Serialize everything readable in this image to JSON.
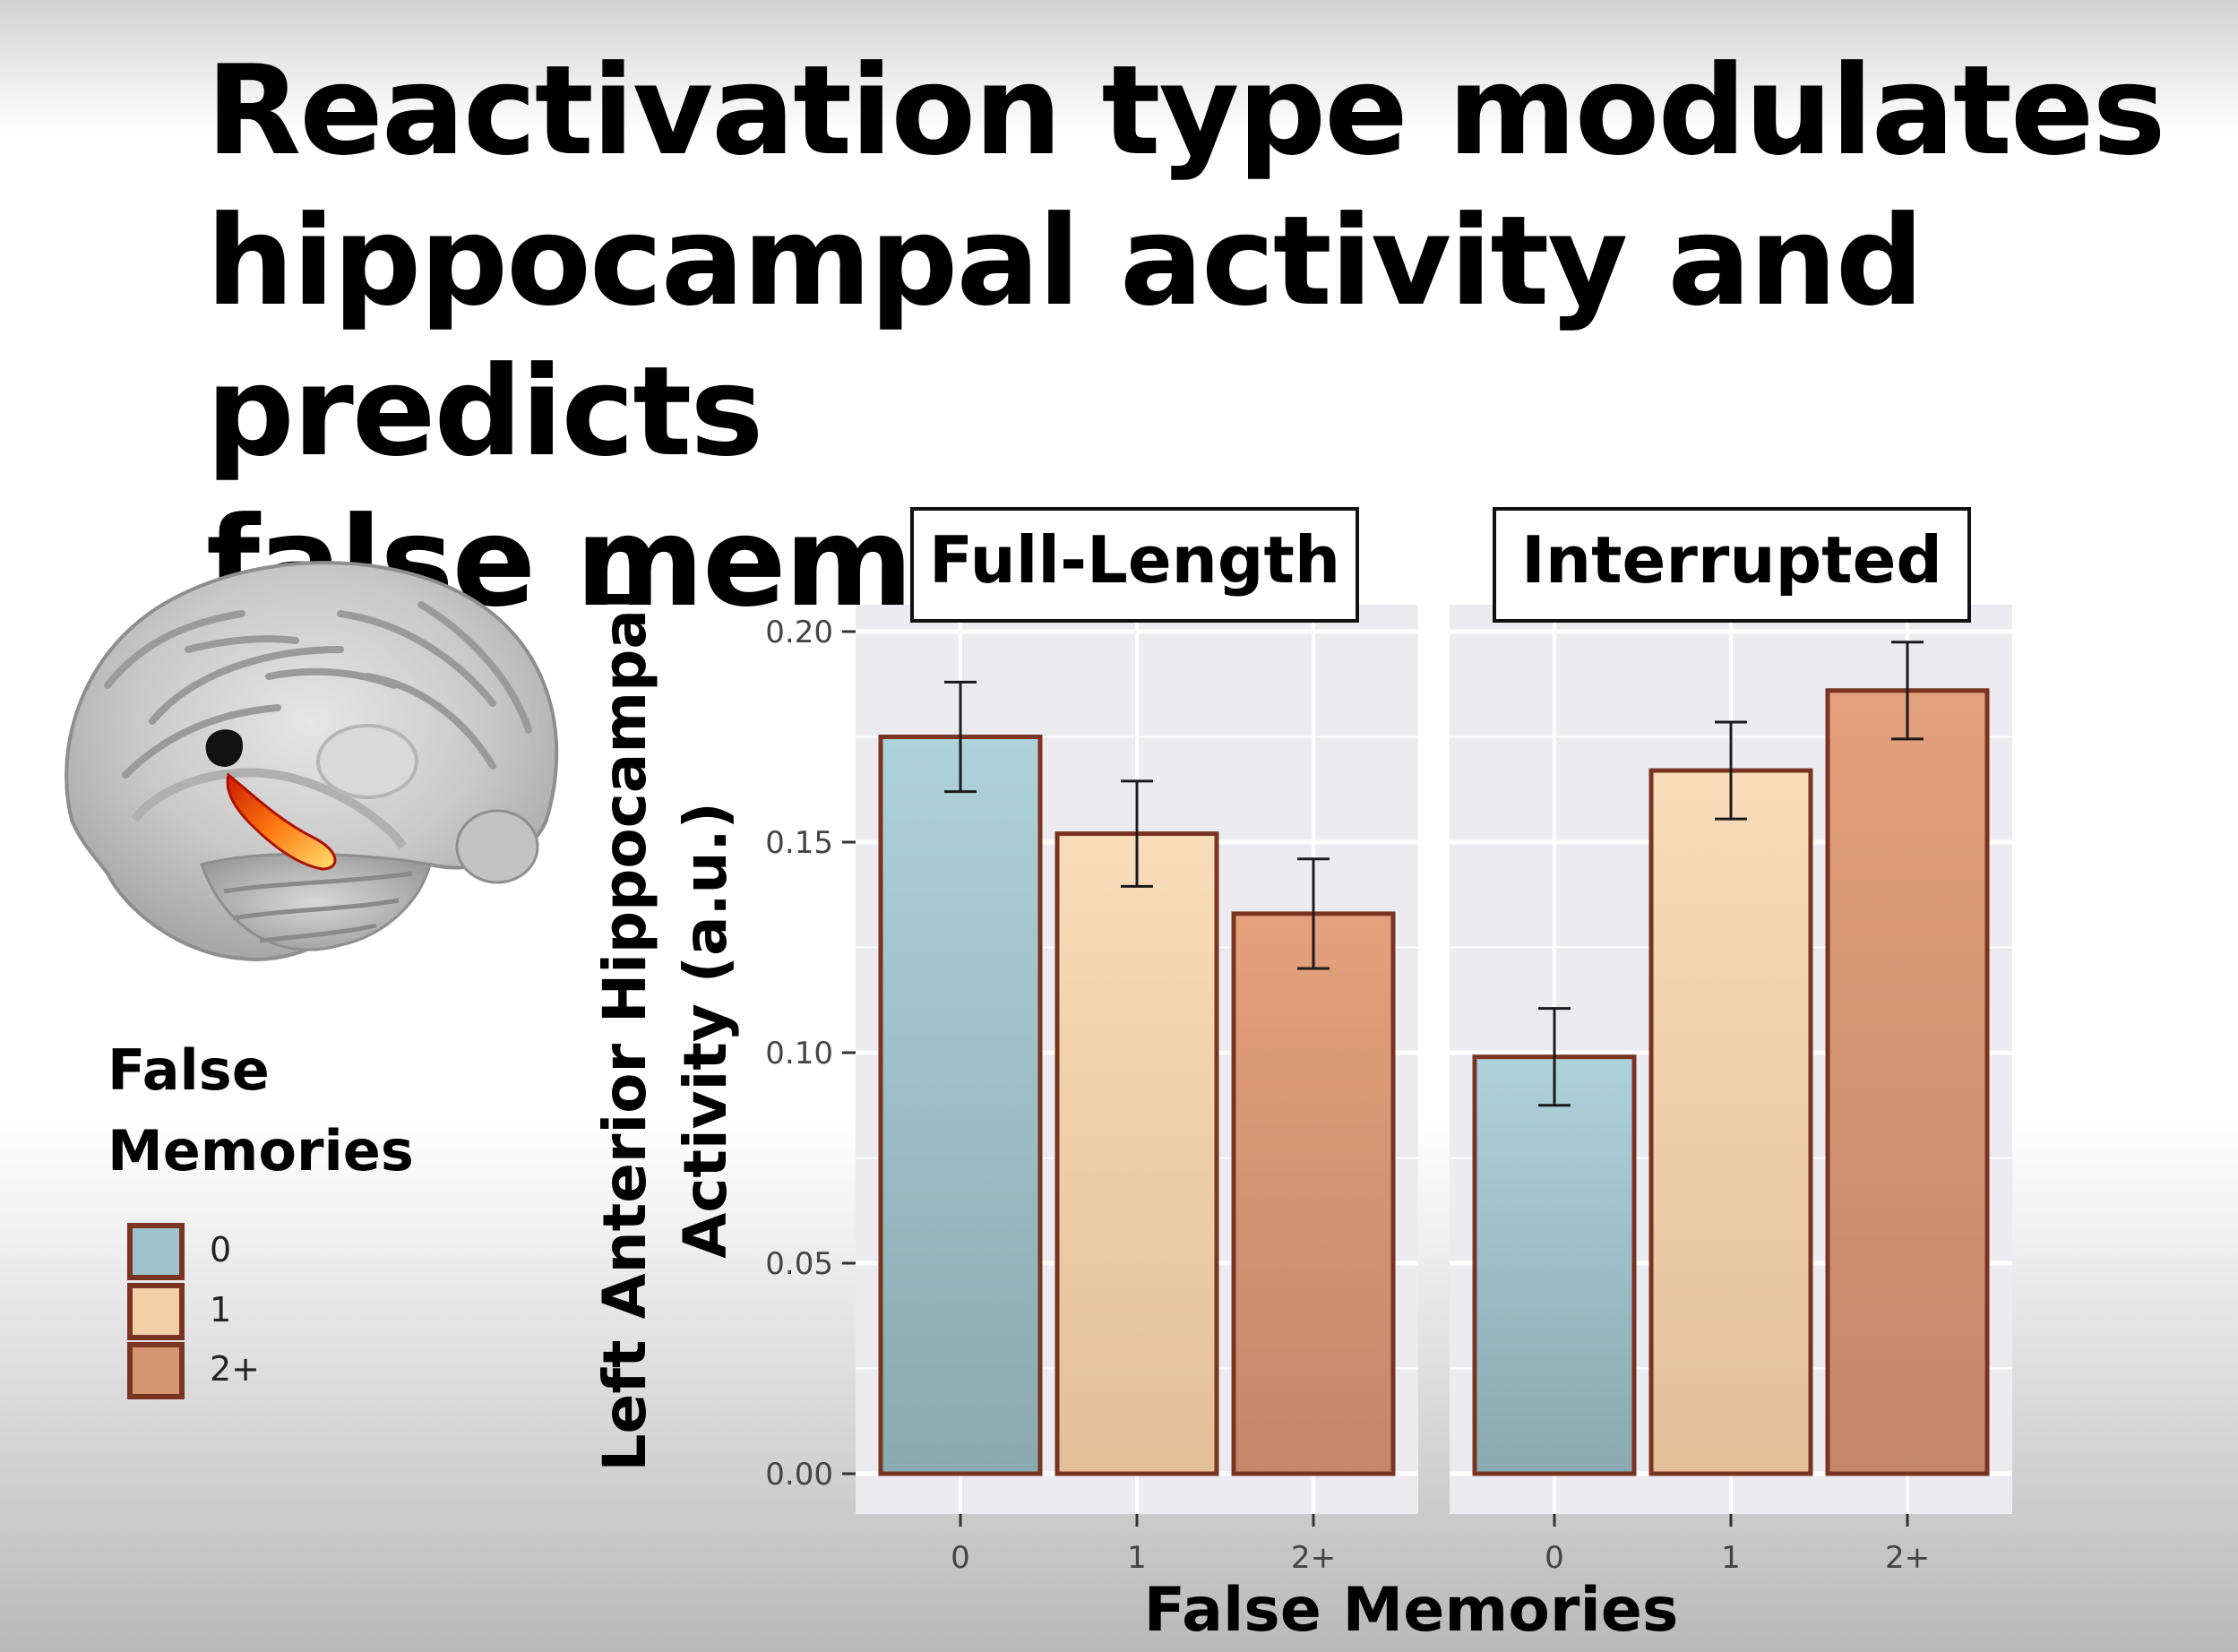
{
  "slide": {
    "title_lines": [
      "Reactivation type modulates",
      "hippocampal activity and predicts",
      "false memories"
    ]
  },
  "legend": {
    "title_lines": [
      "False",
      "Memories"
    ],
    "items": [
      {
        "label": "0",
        "color": "#9ec3cc"
      },
      {
        "label": "1",
        "color": "#f2cfa6"
      },
      {
        "label": "2+",
        "color": "#d69571"
      }
    ]
  },
  "colors": {
    "panel_background": "#ebebf0",
    "bar_border": "#7a3522",
    "error_bar": "#1a1a1a",
    "brain_highlight": "#ff6a00"
  },
  "chart_data": {
    "type": "bar",
    "ylabel": "Left Anterior Hippocampal Activity (a.u.)",
    "ylabel_lines": [
      "Left Anterior Hippocampal",
      "Activity (a.u.)"
    ],
    "xlabel": "False Memories",
    "ylim": [
      0,
      0.21
    ],
    "yticks": [
      "0.00",
      "0.05",
      "0.10",
      "0.15",
      "0.20"
    ],
    "ytick_values": [
      0,
      0.05,
      0.1,
      0.15,
      0.2
    ],
    "grid": true,
    "categories": [
      "0",
      "1",
      "2+"
    ],
    "panels": [
      {
        "title": "Full-Length",
        "values": [
          0.175,
          0.152,
          0.133
        ],
        "errors": [
          0.013,
          0.0125,
          0.013
        ]
      },
      {
        "title": "Interrupted",
        "values": [
          0.099,
          0.167,
          0.186
        ],
        "errors": [
          0.0115,
          0.0115,
          0.0115
        ]
      }
    ]
  }
}
